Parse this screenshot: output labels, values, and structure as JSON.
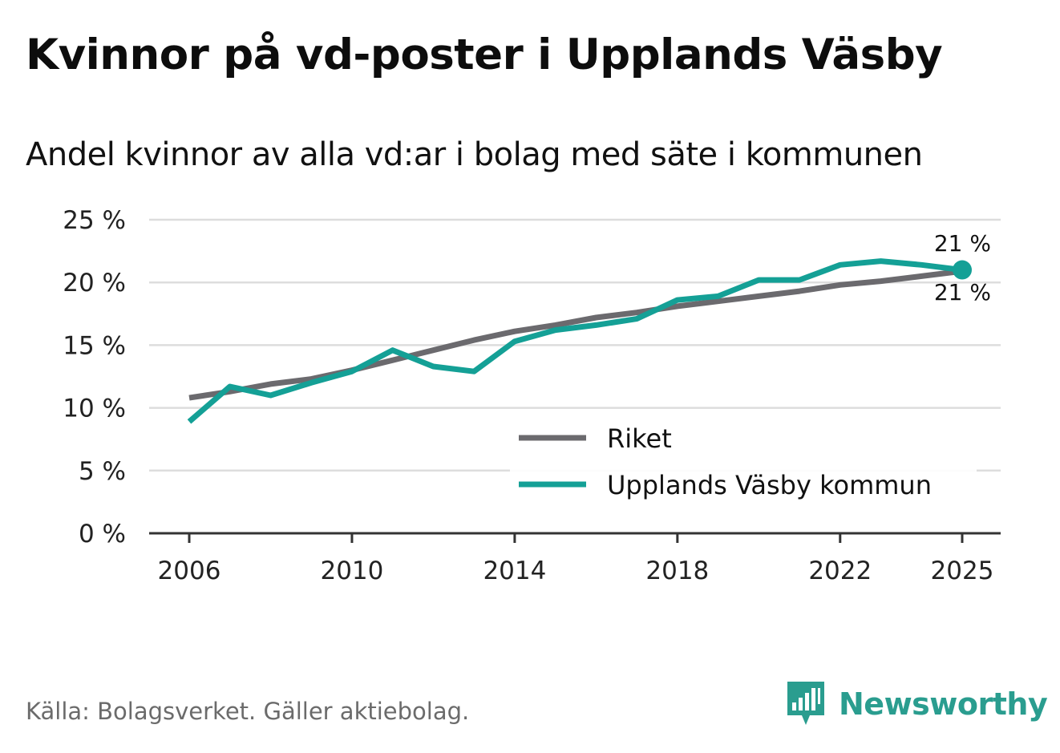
{
  "header": {
    "title": "Kvinnor på vd-poster i Upplands Väsby",
    "subtitle": "Andel kvinnor av alla vd:ar i bolag med säte i kommunen"
  },
  "footer": {
    "source": "Källa: Bolagsverket. Gäller aktiebolag.",
    "brand": "Newsworthy"
  },
  "colors": {
    "riket": "#6b6a6e",
    "kommun": "#14a096",
    "grid": "#dddddd",
    "axis": "#333333",
    "brand": "#2a9d8f"
  },
  "chart_data": {
    "type": "line",
    "title": "Kvinnor på vd-poster i Upplands Väsby",
    "xlabel": "",
    "ylabel": "",
    "x": [
      2006,
      2007,
      2008,
      2009,
      2010,
      2011,
      2012,
      2013,
      2014,
      2015,
      2016,
      2017,
      2018,
      2019,
      2020,
      2021,
      2022,
      2023,
      2024,
      2025
    ],
    "xticks": [
      2006,
      2010,
      2014,
      2018,
      2022,
      2025
    ],
    "xlim": [
      2006,
      2025
    ],
    "ylim": [
      0,
      25
    ],
    "yticks": [
      0,
      5,
      10,
      15,
      20,
      25
    ],
    "ytick_labels": [
      "0 %",
      "5 %",
      "10 %",
      "15 %",
      "20 %",
      "25 %"
    ],
    "grid": true,
    "legend": "bottom-right",
    "series": [
      {
        "name": "Riket",
        "values": [
          10.8,
          11.3,
          11.9,
          12.3,
          13.0,
          13.8,
          14.6,
          15.4,
          16.1,
          16.6,
          17.2,
          17.6,
          18.1,
          18.5,
          18.9,
          19.3,
          19.8,
          20.1,
          20.5,
          20.9
        ],
        "end_label": "21 %"
      },
      {
        "name": "Upplands Väsby kommun",
        "values": [
          8.9,
          11.7,
          11.0,
          12.0,
          12.9,
          14.6,
          13.3,
          12.9,
          15.3,
          16.2,
          16.6,
          17.1,
          18.6,
          18.9,
          20.2,
          20.2,
          21.4,
          21.7,
          21.4,
          21.0
        ],
        "end_label": "21 %"
      }
    ]
  }
}
